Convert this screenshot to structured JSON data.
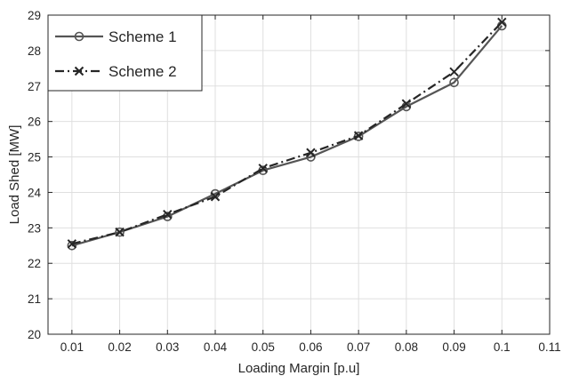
{
  "chart_data": {
    "type": "line",
    "title": "",
    "xlabel": "Loading Margin [p.u]",
    "ylabel": "Load Shed  [MW]",
    "xlim": [
      0.005,
      0.11
    ],
    "ylim": [
      20,
      29
    ],
    "xticks": [
      "0.01",
      "0.02",
      "0.03",
      "0.04",
      "0.05",
      "0.06",
      "0.07",
      "0.08",
      "0.09",
      "0.1",
      "0.11"
    ],
    "yticks": [
      "20",
      "21",
      "22",
      "23",
      "24",
      "25",
      "26",
      "27",
      "28",
      "29"
    ],
    "grid": true,
    "legend_position": "top-left",
    "x": [
      0.01,
      0.02,
      0.03,
      0.04,
      0.05,
      0.06,
      0.07,
      0.08,
      0.09,
      0.1
    ],
    "series": [
      {
        "name": "Scheme 1",
        "marker": "circle",
        "line_style": "solid",
        "color": "#555555",
        "values": [
          22.5,
          22.88,
          23.32,
          23.96,
          24.62,
          25.0,
          25.58,
          26.42,
          27.1,
          28.7
        ]
      },
      {
        "name": "Scheme 2",
        "marker": "x",
        "line_style": "dash-dot",
        "color": "#262626",
        "values": [
          22.55,
          22.88,
          23.38,
          23.88,
          24.68,
          25.12,
          25.6,
          26.5,
          27.4,
          28.8
        ]
      }
    ]
  }
}
